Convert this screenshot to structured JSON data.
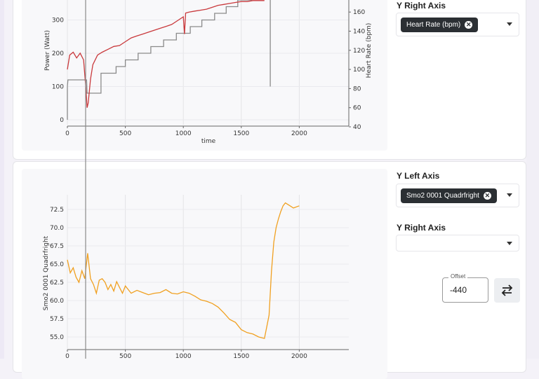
{
  "panel1": {
    "y_right_axis_label": "Y Right Axis",
    "right_chip": "Heart Rate (bpm)",
    "chart": {
      "left_ylabel": "Power (Watt)",
      "right_ylabel": "Heart Rate (bpm)",
      "xlabel": "time",
      "x_ticks": [
        "0",
        "500",
        "1000",
        "1500",
        "2000"
      ],
      "left_ticks": [
        "0",
        "100",
        "200",
        "300"
      ],
      "right_ticks": [
        "40",
        "60",
        "80",
        "100",
        "120",
        "140",
        "160"
      ]
    }
  },
  "panel2": {
    "y_left_axis_label": "Y Left Axis",
    "left_chip": "Smo2 0001 Quadrfright",
    "y_right_axis_label": "Y Right Axis",
    "offset_label": "Offset",
    "offset_value": "-440",
    "chart": {
      "left_ylabel": "Smo2 0001 Quadrfright",
      "x_ticks": [
        "0",
        "500",
        "1000",
        "1500",
        "2000"
      ],
      "left_ticks": [
        "55.0",
        "57.5",
        "60.0",
        "62.5",
        "65.0",
        "67.5",
        "70.0",
        "72.5"
      ]
    }
  },
  "colors": {
    "power": "#8a8a8a",
    "heart_rate": "#c9393c",
    "smo2": "#f0a020",
    "cursor": "#8a8a8a"
  },
  "chart_data": [
    {
      "type": "line",
      "xlabel": "time",
      "ylabel": "Power (Watt)",
      "y2label": "Heart Rate (bpm)",
      "xlim": [
        0,
        2150
      ],
      "ylim": [
        0,
        380
      ],
      "y2lim": [
        40,
        170
      ],
      "series": [
        {
          "name": "Power (Watt)",
          "axis": "left",
          "x": [
            0,
            0,
            5,
            165,
            170,
            290,
            290,
            420,
            420,
            500,
            500,
            610,
            610,
            720,
            720,
            830,
            830,
            940,
            940,
            1060,
            1060,
            1160,
            1160,
            1270,
            1270,
            1370,
            1370,
            1470,
            1470,
            1590,
            1590,
            1750,
            1750
          ],
          "y": [
            0,
            100,
            120,
            120,
            80,
            80,
            140,
            140,
            160,
            160,
            180,
            180,
            200,
            200,
            220,
            220,
            240,
            240,
            260,
            260,
            280,
            280,
            300,
            300,
            320,
            320,
            340,
            340,
            360,
            360,
            380,
            380,
            100
          ]
        },
        {
          "name": "Heart Rate (bpm)",
          "axis": "right",
          "x": [
            0,
            20,
            50,
            80,
            110,
            140,
            160,
            170,
            180,
            200,
            220,
            260,
            300,
            350,
            400,
            450,
            500,
            550,
            600,
            650,
            700,
            750,
            800,
            850,
            900,
            950,
            1000,
            1010,
            1020,
            1050,
            1100,
            1150,
            1200,
            1250,
            1300,
            1350,
            1400,
            1450,
            1500,
            1550,
            1600,
            1650,
            1700
          ],
          "y": [
            100,
            115,
            118,
            112,
            117,
            110,
            80,
            60,
            65,
            90,
            105,
            115,
            118,
            121,
            124,
            125,
            129,
            133,
            135,
            137,
            139,
            141,
            143,
            145,
            147,
            151,
            155,
            137,
            159,
            160,
            161,
            162,
            163,
            165,
            167,
            168,
            169,
            170,
            171,
            171,
            172,
            172,
            172
          ]
        }
      ]
    },
    {
      "type": "line",
      "ylabel": "Smo2 0001 Quadrfright",
      "xlim": [
        0,
        2150
      ],
      "ylim": [
        53.5,
        73.5
      ],
      "series": [
        {
          "name": "Smo2 0001 Quadrfright",
          "axis": "left",
          "x": [
            0,
            25,
            50,
            75,
            100,
            125,
            150,
            175,
            200,
            225,
            250,
            275,
            300,
            325,
            350,
            375,
            400,
            425,
            450,
            475,
            500,
            550,
            600,
            650,
            700,
            750,
            800,
            850,
            900,
            950,
            1000,
            1050,
            1100,
            1150,
            1200,
            1250,
            1300,
            1350,
            1400,
            1450,
            1500,
            1550,
            1600,
            1650,
            1700,
            1740,
            1760,
            1780,
            1800,
            1820,
            1840,
            1860,
            1880,
            1900,
            1950,
            2000
          ],
          "y": [
            65.6,
            63.8,
            64.5,
            63.2,
            62.5,
            64.1,
            63.0,
            66.5,
            63.0,
            62.2,
            61.0,
            62.8,
            63.0,
            62.5,
            61.5,
            62.2,
            61.3,
            62.6,
            61.8,
            61.0,
            62.0,
            61.0,
            61.4,
            61.1,
            60.8,
            61.0,
            61.1,
            61.5,
            61.0,
            60.9,
            61.2,
            61.0,
            60.6,
            60.1,
            59.9,
            59.6,
            59.1,
            58.3,
            57.4,
            57.0,
            56.0,
            55.6,
            55.4,
            55.0,
            54.8,
            58.0,
            64.0,
            68.0,
            70.0,
            71.2,
            72.2,
            73.0,
            73.4,
            73.2,
            72.7,
            73.0
          ]
        }
      ]
    }
  ]
}
